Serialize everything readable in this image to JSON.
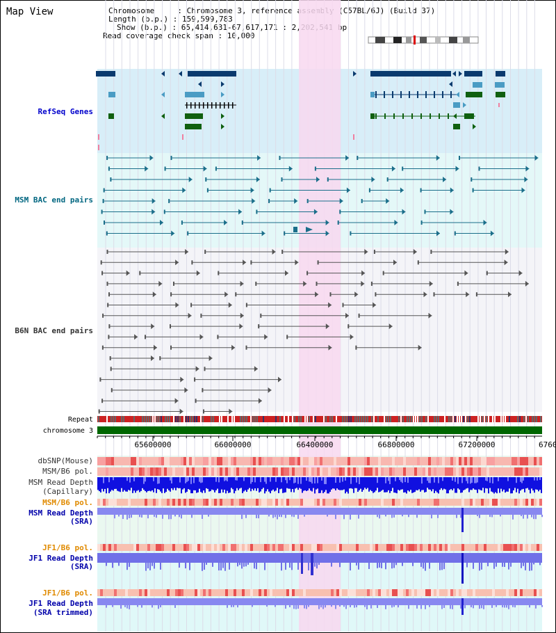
{
  "page": {
    "title": "Map View"
  },
  "header": {
    "line1": "Chromosome     : Chromosome 3, reference assembly (C57BL/6J) (Build 37)",
    "line2": "Length (b.p.) : 159,599,783",
    "line3": "Show (b.p.) : 65,414,631-67,617,171 : 2,202,541 bp",
    "line4": "Read coverage check span : 10,000"
  },
  "tracks": {
    "refseq": "RefSeq Genes",
    "msm_bac": "MSM BAC end pairs",
    "b6n_bac": "B6N BAC end pairs",
    "repeat": "Repeat",
    "chromosome": "chromosome 3",
    "dbsnp": "dbSNP(Mouse)",
    "msm_b6_pol_1": "MSM/B6 pol.",
    "msm_depth_cap_1": "MSM Read Depth",
    "msm_depth_cap_2": "(Capillary)",
    "msm_b6_pol_2": "MSM/B6 pol.",
    "msm_depth_sra_1": "MSM Read Depth",
    "msm_depth_sra_2": "(SRA)",
    "jf1_b6_pol_1": "JF1/B6 pol.",
    "jf1_depth_sra_1": "JF1 Read Depth",
    "jf1_depth_sra_2": "(SRA)",
    "jf1_b6_pol_2": "JF1/B6 pol.",
    "jf1_depth_trim_1": "JF1 Read Depth",
    "jf1_depth_trim_2": "(SRA trimmed)"
  },
  "axis": {
    "ticks": [
      "65600000",
      "66000000",
      "66400000",
      "66800000",
      "67200000",
      "6760"
    ]
  },
  "colors": {
    "highlight": "#f8d8f0",
    "refseq_bg": "#d8eef8",
    "msm_bac_bg": "#e4f8f8",
    "gene_dark": "#0a3a6e",
    "gene_mid": "#4a9cc4",
    "gene_green": "#106010",
    "chromosome_bar": "#006600",
    "depth_blue": "#0000dd",
    "depth_light": "#8888f0"
  }
}
